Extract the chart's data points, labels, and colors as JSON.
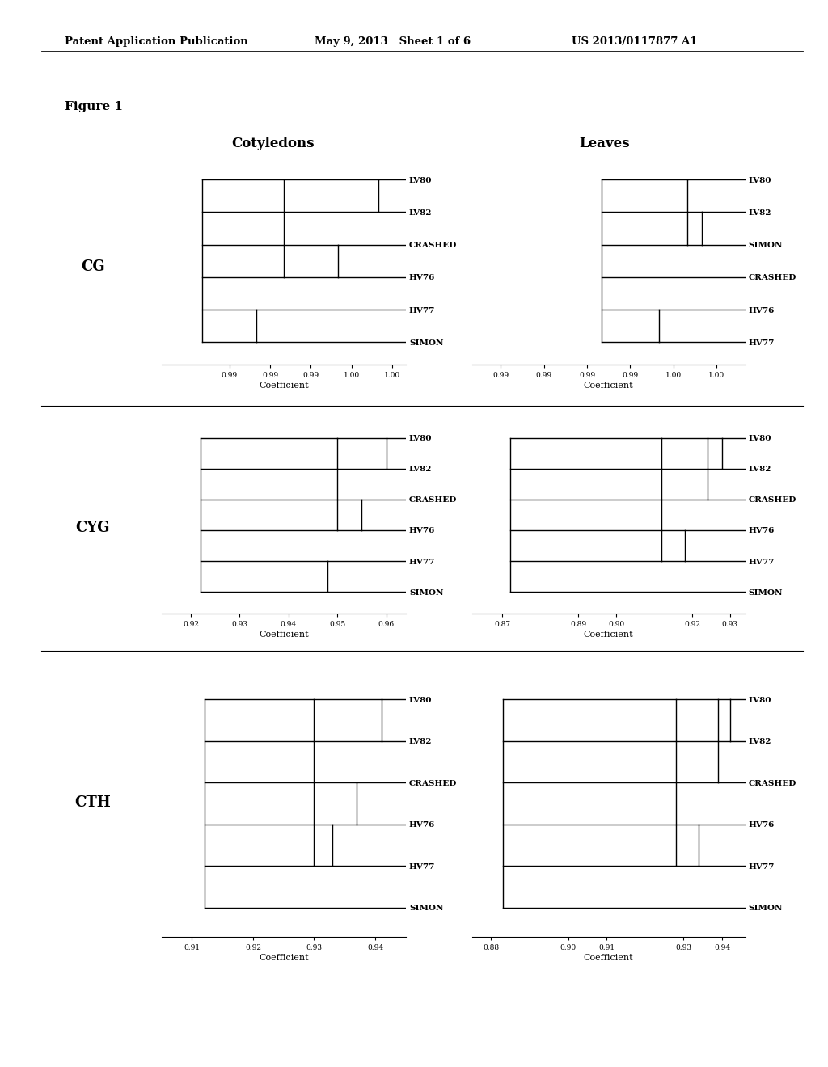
{
  "header_left": "Patent Application Publication",
  "header_mid": "May 9, 2013   Sheet 1 of 6",
  "header_right": "US 2013/0117877 A1",
  "figure_label": "Figure 1",
  "background_color": "#ffffff",
  "panels": [
    {
      "row": 0,
      "col": 0,
      "title": "Cotyledons",
      "row_label": "CG",
      "taxa": [
        "LV80",
        "LV82",
        "CRASHED",
        "HV76",
        "HV77",
        "SIMON"
      ],
      "merges": [
        [
          1.001,
          [
            "LV80",
            "LV82"
          ]
        ],
        [
          0.998,
          [
            "CRASHED",
            "HV76"
          ]
        ],
        [
          0.994,
          [
            "LV80",
            "LV82",
            "CRASHED",
            "HV76"
          ]
        ],
        [
          0.992,
          [
            "HV77",
            "SIMON"
          ]
        ],
        [
          0.988,
          [
            "LV80",
            "LV82",
            "CRASHED",
            "HV76",
            "HV77",
            "SIMON"
          ]
        ]
      ],
      "xlim": [
        0.985,
        1.003
      ],
      "xtick_vals": [
        0.99,
        0.993,
        0.996,
        0.999,
        1.002
      ],
      "xtick_labels": [
        "0.99",
        "0.99",
        "0.99",
        "1.00",
        "1.00"
      ],
      "xlabel": "Coefficient"
    },
    {
      "row": 0,
      "col": 1,
      "title": "Leaves",
      "row_label": "",
      "taxa": [
        "LV80",
        "LV82",
        "SIMON",
        "CRASHED",
        "HV76",
        "HV77"
      ],
      "merges": [
        [
          1.0,
          [
            "LV82",
            "SIMON"
          ]
        ],
        [
          0.999,
          [
            "LV80",
            "LV82",
            "SIMON"
          ]
        ],
        [
          0.997,
          [
            "HV76",
            "HV77"
          ]
        ],
        [
          0.993,
          [
            "LV80",
            "LV82",
            "SIMON",
            "CRASHED",
            "HV76",
            "HV77"
          ]
        ]
      ],
      "xlim": [
        0.984,
        1.003
      ],
      "xtick_vals": [
        0.986,
        0.989,
        0.992,
        0.995,
        0.998,
        1.001
      ],
      "xtick_labels": [
        "0.99",
        "0.99",
        "0.99",
        "0.99",
        "1.00",
        "1.00"
      ],
      "xlabel": "Coefficient"
    },
    {
      "row": 1,
      "col": 0,
      "title": "",
      "row_label": "CYG",
      "taxa": [
        "LV80",
        "LV82",
        "CRASHED",
        "HV76",
        "HV77",
        "SIMON"
      ],
      "merges": [
        [
          0.96,
          [
            "LV80",
            "LV82"
          ]
        ],
        [
          0.955,
          [
            "CRASHED",
            "HV76"
          ]
        ],
        [
          0.95,
          [
            "LV80",
            "LV82",
            "CRASHED",
            "HV76"
          ]
        ],
        [
          0.948,
          [
            "HV77",
            "SIMON"
          ]
        ],
        [
          0.922,
          [
            "LV80",
            "LV82",
            "CRASHED",
            "HV76",
            "HV77",
            "SIMON"
          ]
        ]
      ],
      "xlim": [
        0.914,
        0.964
      ],
      "xtick_vals": [
        0.92,
        0.93,
        0.94,
        0.95,
        0.96
      ],
      "xtick_labels": [
        "0.92",
        "0.93",
        "0.94",
        "0.95",
        "0.96"
      ],
      "xlabel": "Coefficient"
    },
    {
      "row": 1,
      "col": 1,
      "title": "",
      "row_label": "",
      "taxa": [
        "LV80",
        "LV82",
        "CRASHED",
        "HV76",
        "HV77",
        "SIMON"
      ],
      "merges": [
        [
          0.928,
          [
            "LV80",
            "LV82"
          ]
        ],
        [
          0.924,
          [
            "LV80",
            "LV82",
            "CRASHED"
          ]
        ],
        [
          0.918,
          [
            "HV76",
            "HV77"
          ]
        ],
        [
          0.912,
          [
            "LV80",
            "LV82",
            "CRASHED",
            "HV76",
            "HV77"
          ]
        ],
        [
          0.872,
          [
            "LV80",
            "LV82",
            "CRASHED",
            "HV76",
            "HV77",
            "SIMON"
          ]
        ]
      ],
      "xlim": [
        0.862,
        0.934
      ],
      "xtick_vals": [
        0.87,
        0.89,
        0.9,
        0.92,
        0.93
      ],
      "xtick_labels": [
        "0.87",
        "0.89",
        "0.90",
        "0.92",
        "0.93"
      ],
      "xlabel": "Coefficient"
    },
    {
      "row": 2,
      "col": 0,
      "title": "",
      "row_label": "CTH",
      "taxa": [
        "LV80",
        "LV82",
        "CRASHED",
        "HV76",
        "HV77",
        "SIMON"
      ],
      "merges": [
        [
          0.941,
          [
            "LV80",
            "LV82"
          ]
        ],
        [
          0.937,
          [
            "CRASHED",
            "HV76"
          ]
        ],
        [
          0.933,
          [
            "HV76",
            "HV77"
          ]
        ],
        [
          0.93,
          [
            "LV80",
            "LV82",
            "CRASHED",
            "HV76",
            "HV77"
          ]
        ],
        [
          0.912,
          [
            "LV80",
            "LV82",
            "CRASHED",
            "HV76",
            "HV77",
            "SIMON"
          ]
        ]
      ],
      "xlim": [
        0.905,
        0.945
      ],
      "xtick_vals": [
        0.91,
        0.92,
        0.93,
        0.94
      ],
      "xtick_labels": [
        "0.91",
        "0.92",
        "0.93",
        "0.94"
      ],
      "xlabel": "Coefficient"
    },
    {
      "row": 2,
      "col": 1,
      "title": "",
      "row_label": "",
      "taxa": [
        "LV80",
        "LV82",
        "CRASHED",
        "HV76",
        "HV77",
        "SIMON"
      ],
      "merges": [
        [
          0.942,
          [
            "LV80",
            "LV82"
          ]
        ],
        [
          0.939,
          [
            "LV80",
            "LV82",
            "CRASHED"
          ]
        ],
        [
          0.934,
          [
            "HV76",
            "HV77"
          ]
        ],
        [
          0.928,
          [
            "LV80",
            "LV82",
            "CRASHED",
            "HV76",
            "HV77"
          ]
        ],
        [
          0.883,
          [
            "LV80",
            "LV82",
            "CRASHED",
            "HV76",
            "HV77",
            "SIMON"
          ]
        ]
      ],
      "xlim": [
        0.875,
        0.946
      ],
      "xtick_vals": [
        0.88,
        0.9,
        0.91,
        0.93,
        0.94
      ],
      "xtick_labels": [
        "0.88",
        "0.90",
        "0.91",
        "0.93",
        "0.94"
      ],
      "xlabel": "Coefficient"
    }
  ]
}
